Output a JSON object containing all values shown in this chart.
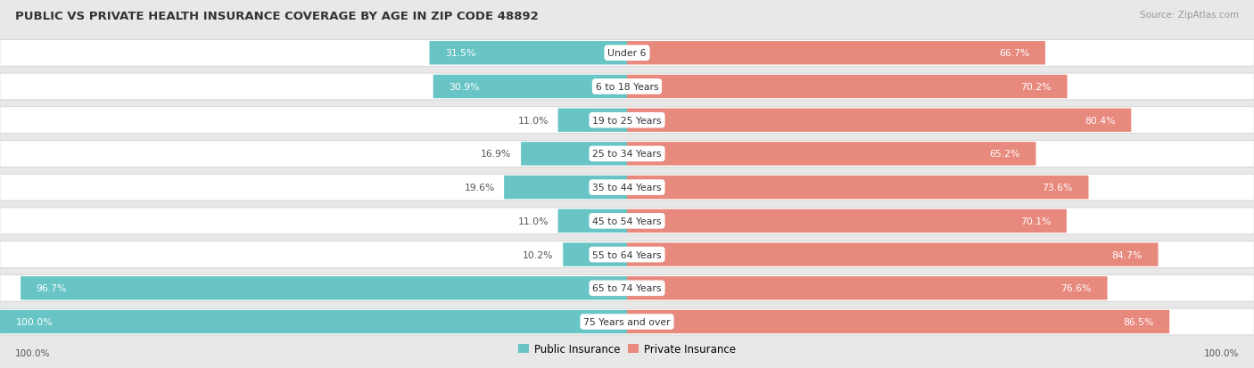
{
  "title": "PUBLIC VS PRIVATE HEALTH INSURANCE COVERAGE BY AGE IN ZIP CODE 48892",
  "source": "Source: ZipAtlas.com",
  "categories": [
    "Under 6",
    "6 to 18 Years",
    "19 to 25 Years",
    "25 to 34 Years",
    "35 to 44 Years",
    "45 to 54 Years",
    "55 to 64 Years",
    "65 to 74 Years",
    "75 Years and over"
  ],
  "public_values": [
    31.5,
    30.9,
    11.0,
    16.9,
    19.6,
    11.0,
    10.2,
    96.7,
    100.0
  ],
  "private_values": [
    66.7,
    70.2,
    80.4,
    65.2,
    73.6,
    70.1,
    84.7,
    76.6,
    86.5
  ],
  "public_color": "#68c4c5",
  "private_color": "#e8897e",
  "bg_color": "#e8e8e8",
  "row_bg_even": "#f5f5f5",
  "row_bg_odd": "#ebebeb",
  "bar_bg_color": "#ffffff",
  "label_white": "#ffffff",
  "label_dark": "#555555",
  "title_color": "#333333",
  "source_color": "#999999",
  "figsize": [
    14.06,
    4.14
  ],
  "dpi": 100
}
